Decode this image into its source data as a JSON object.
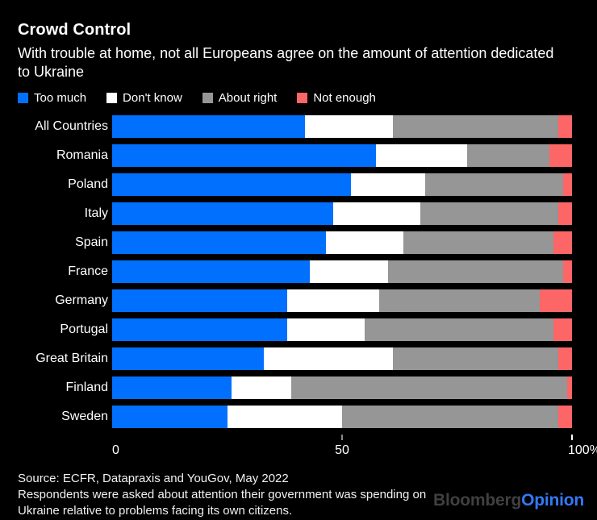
{
  "header": {
    "title": "Crowd Control",
    "subtitle": "With trouble at home, not all Europeans agree on the amount of attention dedicated to Ukraine"
  },
  "chart_data": {
    "type": "bar",
    "orientation": "horizontal",
    "stacked": true,
    "unit": "%",
    "xlim": [
      0,
      100
    ],
    "grid": false,
    "legend_position": "top",
    "categories": [
      "All Countries",
      "Romania",
      "Poland",
      "Italy",
      "Spain",
      "France",
      "Germany",
      "Portugal",
      "Great Britain",
      "Finland",
      "Sweden"
    ],
    "series": [
      {
        "name": "Too much",
        "color": "#0170ff",
        "values": [
          42,
          58,
          52,
          48,
          47,
          43,
          38,
          38,
          33,
          26,
          25
        ]
      },
      {
        "name": "Don't know",
        "color": "#ffffff",
        "values": [
          19,
          20,
          16,
          19,
          17,
          17,
          20,
          17,
          28,
          13,
          25
        ]
      },
      {
        "name": "About right",
        "color": "#969696",
        "values": [
          36,
          18,
          30,
          30,
          33,
          38,
          35,
          41,
          36,
          60,
          47
        ]
      },
      {
        "name": "Not enough",
        "color": "#fc6666",
        "values": [
          3,
          5,
          2,
          3,
          4,
          2,
          7,
          4,
          3,
          1,
          3
        ]
      }
    ],
    "xticks": [
      {
        "pos": 0,
        "label": "0",
        "mark": false,
        "align": "left",
        "mark_color": "#8a8a8a"
      },
      {
        "pos": 50,
        "label": "50",
        "mark": true,
        "align": "center",
        "mark_color": "#8a8a8a"
      },
      {
        "pos": 100,
        "label": "100%",
        "mark": true,
        "align": "right",
        "mark_color": "#ffffff"
      }
    ]
  },
  "footer": {
    "source": "Source: ECFR, Datapraxis and YouGov, May 2022",
    "note": "Respondents were asked about attention their government was spending on Ukraine relative to problems facing its own citizens.",
    "brand": {
      "bloomberg": "Bloomberg",
      "opinion": "Opinion"
    }
  },
  "colors": {
    "background": "#000000",
    "text": "#ffffff",
    "too_much": "#0170ff",
    "dont_know": "#ffffff",
    "about_right": "#969696",
    "not_enough": "#fc6666",
    "bloomberg_logo": "#404040",
    "opinion_logo": "#3379f7"
  }
}
